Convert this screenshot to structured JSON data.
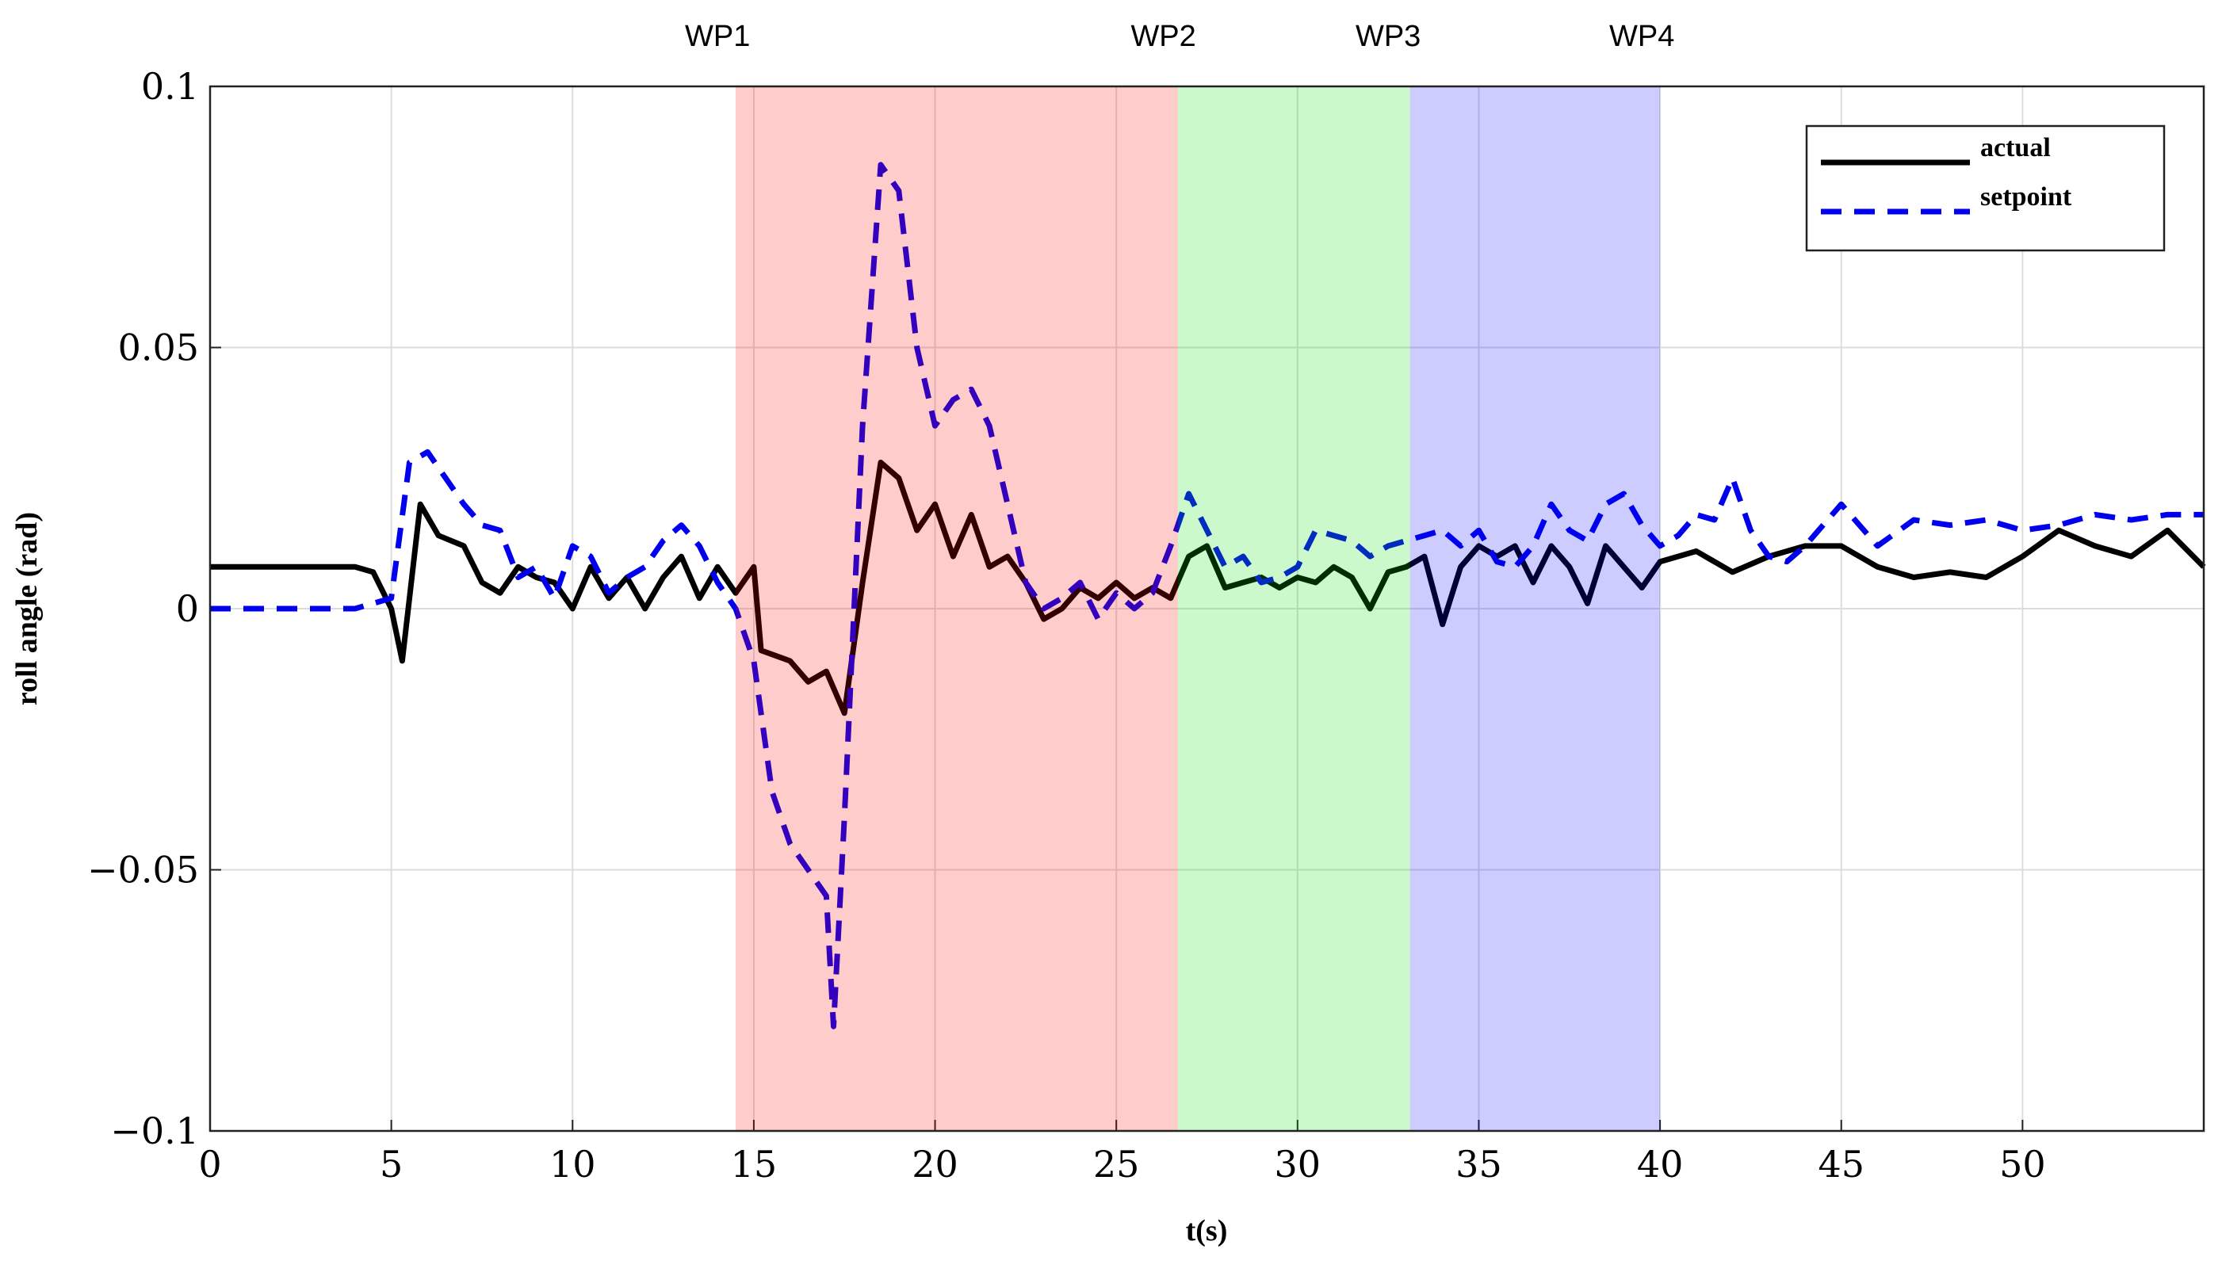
{
  "chart_data": {
    "type": "line",
    "xlabel": "t(s)",
    "ylabel": "roll angle (rad)",
    "xlim": [
      0,
      55
    ],
    "ylim": [
      -0.1,
      0.1
    ],
    "xticks": [
      0,
      5,
      10,
      15,
      20,
      25,
      30,
      35,
      40,
      45,
      50
    ],
    "yticks": [
      {
        "value": -0.1,
        "label": "−0.1"
      },
      {
        "value": -0.05,
        "label": "−0.05"
      },
      0,
      0.05,
      0.1
    ],
    "grid": true,
    "legend": "upper right",
    "regions": [
      {
        "start": 14.5,
        "end": 26.7,
        "color": "#ff0000"
      },
      {
        "start": 26.7,
        "end": 33.1,
        "color": "#00e000"
      },
      {
        "start": 33.1,
        "end": 40,
        "color": "#0000ff"
      }
    ],
    "annotations": [
      {
        "text": "WP1",
        "x": 14
      },
      {
        "text": "WP2",
        "x": 26.3
      },
      {
        "text": "WP3",
        "x": 32.5
      },
      {
        "text": "WP4",
        "x": 39.5
      }
    ],
    "series": [
      {
        "name": "actual",
        "color": "#000000",
        "style": "solid",
        "x": [
          0,
          4,
          4.5,
          5,
          5.3,
          5.8,
          6.3,
          7,
          7.5,
          8,
          8.5,
          9,
          9.5,
          10,
          10.5,
          11,
          11.5,
          12,
          12.5,
          13,
          13.5,
          14,
          14.5,
          15,
          15.2,
          16,
          16.5,
          17,
          17.5,
          18,
          18.5,
          19,
          19.5,
          20,
          20.5,
          21,
          21.5,
          22,
          22.5,
          23,
          23.5,
          24,
          24.5,
          25,
          25.5,
          26,
          26.5,
          27,
          27.5,
          28,
          28.5,
          29,
          29.5,
          30,
          30.5,
          31,
          31.5,
          32,
          32.5,
          33,
          33.5,
          34,
          34.5,
          35,
          35.5,
          36,
          36.5,
          37,
          37.5,
          38,
          38.5,
          39,
          39.5,
          40,
          41,
          42,
          43,
          44,
          45,
          46,
          47,
          48,
          49,
          50,
          51,
          52,
          53,
          54,
          55
        ],
        "values": [
          0.008,
          0.008,
          0.007,
          0.0,
          -0.01,
          0.02,
          0.014,
          0.012,
          0.005,
          0.003,
          0.008,
          0.006,
          0.005,
          0.0,
          0.008,
          0.002,
          0.006,
          0.0,
          0.006,
          0.01,
          0.002,
          0.008,
          0.003,
          0.008,
          -0.008,
          -0.01,
          -0.014,
          -0.012,
          -0.02,
          0.005,
          0.028,
          0.025,
          0.015,
          0.02,
          0.01,
          0.018,
          0.008,
          0.01,
          0.005,
          -0.002,
          0.0,
          0.004,
          0.002,
          0.005,
          0.002,
          0.004,
          0.002,
          0.01,
          0.012,
          0.004,
          0.005,
          0.006,
          0.004,
          0.006,
          0.005,
          0.008,
          0.006,
          0.0,
          0.007,
          0.008,
          0.01,
          -0.003,
          0.008,
          0.012,
          0.01,
          0.012,
          0.005,
          0.012,
          0.008,
          0.001,
          0.012,
          0.008,
          0.004,
          0.009,
          0.011,
          0.007,
          0.01,
          0.012,
          0.012,
          0.008,
          0.006,
          0.007,
          0.006,
          0.01,
          0.015,
          0.012,
          0.01,
          0.015,
          0.008
        ]
      },
      {
        "name": "setpoint",
        "color": "#0000ee",
        "style": "dashed",
        "x": [
          0,
          4,
          5,
          5.5,
          6,
          6.5,
          7,
          7.5,
          8,
          8.5,
          9,
          9.5,
          10,
          10.5,
          11,
          11.5,
          12,
          12.5,
          13,
          13.5,
          14,
          14.5,
          15,
          15.5,
          16,
          16.5,
          17,
          17.2,
          17.5,
          18,
          18.5,
          19,
          19.5,
          20,
          20.5,
          21,
          21.5,
          22,
          22.5,
          23,
          23.5,
          24,
          24.5,
          25,
          25.5,
          26,
          26.5,
          27,
          27.5,
          28,
          28.5,
          29,
          29.5,
          30,
          30.5,
          31,
          31.5,
          32,
          32.5,
          33,
          33.5,
          34,
          34.5,
          35,
          35.5,
          36,
          36.5,
          37,
          37.5,
          38,
          38.5,
          39,
          39.5,
          40,
          40.5,
          41,
          41.5,
          42,
          42.5,
          43,
          43.5,
          44,
          45,
          46,
          47,
          48,
          49,
          50,
          51,
          52,
          53,
          54,
          55
        ],
        "values": [
          0,
          0,
          0.002,
          0.028,
          0.03,
          0.025,
          0.02,
          0.016,
          0.015,
          0.006,
          0.008,
          0.002,
          0.012,
          0.01,
          0.003,
          0.006,
          0.008,
          0.013,
          0.016,
          0.012,
          0.005,
          0.0,
          -0.01,
          -0.035,
          -0.045,
          -0.05,
          -0.055,
          -0.08,
          -0.04,
          0.035,
          0.085,
          0.08,
          0.05,
          0.035,
          0.04,
          0.042,
          0.035,
          0.02,
          0.005,
          0.0,
          0.002,
          0.005,
          -0.002,
          0.003,
          0.0,
          0.003,
          0.012,
          0.022,
          0.015,
          0.008,
          0.01,
          0.005,
          0.006,
          0.008,
          0.015,
          0.014,
          0.013,
          0.01,
          0.012,
          0.013,
          0.014,
          0.015,
          0.012,
          0.015,
          0.009,
          0.008,
          0.012,
          0.02,
          0.015,
          0.013,
          0.02,
          0.022,
          0.016,
          0.012,
          0.014,
          0.018,
          0.017,
          0.025,
          0.015,
          0.01,
          0.009,
          0.012,
          0.02,
          0.012,
          0.017,
          0.016,
          0.017,
          0.015,
          0.016,
          0.018,
          0.017,
          0.018,
          0.018
        ]
      }
    ]
  }
}
